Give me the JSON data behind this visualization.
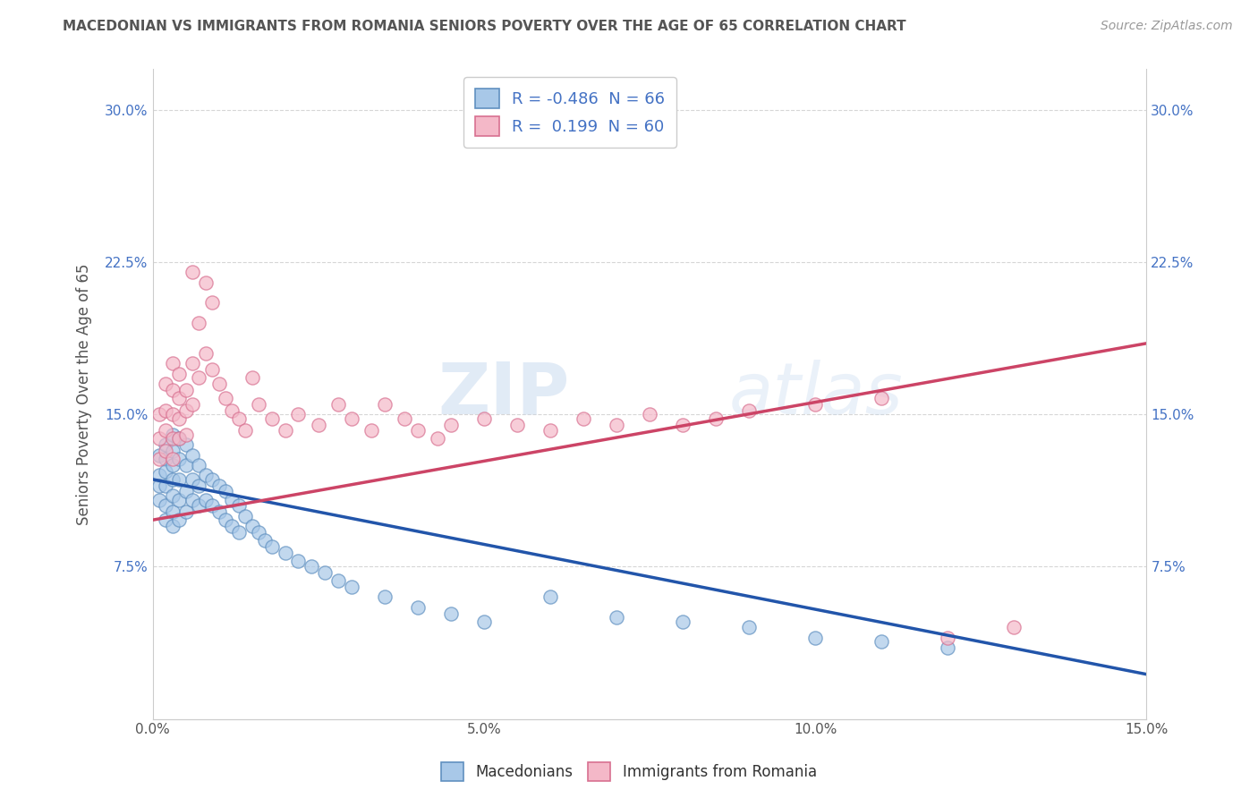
{
  "title": "MACEDONIAN VS IMMIGRANTS FROM ROMANIA SENIORS POVERTY OVER THE AGE OF 65 CORRELATION CHART",
  "source": "Source: ZipAtlas.com",
  "xlabel": "",
  "ylabel": "Seniors Poverty Over the Age of 65",
  "xmin": 0.0,
  "xmax": 0.15,
  "ymin": 0.0,
  "ymax": 0.32,
  "yticks": [
    0.075,
    0.15,
    0.225,
    0.3
  ],
  "ytick_labels": [
    "7.5%",
    "15.0%",
    "22.5%",
    "30.0%"
  ],
  "xticks": [
    0.0,
    0.05,
    0.1,
    0.15
  ],
  "xtick_labels": [
    "0.0%",
    "5.0%",
    "10.0%",
    "15.0%"
  ],
  "legend_labels": [
    "Macedonians",
    "Immigrants from Romania"
  ],
  "blue_color": "#a8c8e8",
  "pink_color": "#f4b8c8",
  "blue_edge": "#6090c0",
  "pink_edge": "#d87090",
  "blue_line_color": "#2255aa",
  "pink_line_color": "#cc4466",
  "R_blue": -0.486,
  "N_blue": 66,
  "R_pink": 0.199,
  "N_pink": 60,
  "watermark_zip": "ZIP",
  "watermark_atlas": "atlas",
  "background_color": "#ffffff",
  "grid_color": "#cccccc",
  "title_color": "#555555",
  "axis_label_color": "#555555",
  "legend_text_color": "#4472c4",
  "blue_line_y0": 0.118,
  "blue_line_y1": 0.022,
  "pink_line_y0": 0.098,
  "pink_line_y1": 0.185,
  "blue_scatter_x": [
    0.001,
    0.001,
    0.001,
    0.001,
    0.002,
    0.002,
    0.002,
    0.002,
    0.002,
    0.002,
    0.003,
    0.003,
    0.003,
    0.003,
    0.003,
    0.003,
    0.003,
    0.004,
    0.004,
    0.004,
    0.004,
    0.004,
    0.005,
    0.005,
    0.005,
    0.005,
    0.006,
    0.006,
    0.006,
    0.007,
    0.007,
    0.007,
    0.008,
    0.008,
    0.009,
    0.009,
    0.01,
    0.01,
    0.011,
    0.011,
    0.012,
    0.012,
    0.013,
    0.013,
    0.014,
    0.015,
    0.016,
    0.017,
    0.018,
    0.02,
    0.022,
    0.024,
    0.026,
    0.028,
    0.03,
    0.035,
    0.04,
    0.045,
    0.05,
    0.06,
    0.07,
    0.08,
    0.09,
    0.1,
    0.11,
    0.12
  ],
  "blue_scatter_y": [
    0.13,
    0.12,
    0.115,
    0.108,
    0.135,
    0.128,
    0.122,
    0.115,
    0.105,
    0.098,
    0.14,
    0.132,
    0.125,
    0.118,
    0.11,
    0.102,
    0.095,
    0.138,
    0.128,
    0.118,
    0.108,
    0.098,
    0.135,
    0.125,
    0.112,
    0.102,
    0.13,
    0.118,
    0.108,
    0.125,
    0.115,
    0.105,
    0.12,
    0.108,
    0.118,
    0.105,
    0.115,
    0.102,
    0.112,
    0.098,
    0.108,
    0.095,
    0.105,
    0.092,
    0.1,
    0.095,
    0.092,
    0.088,
    0.085,
    0.082,
    0.078,
    0.075,
    0.072,
    0.068,
    0.065,
    0.06,
    0.055,
    0.052,
    0.048,
    0.06,
    0.05,
    0.048,
    0.045,
    0.04,
    0.038,
    0.035
  ],
  "pink_scatter_x": [
    0.001,
    0.001,
    0.001,
    0.002,
    0.002,
    0.002,
    0.002,
    0.003,
    0.003,
    0.003,
    0.003,
    0.003,
    0.004,
    0.004,
    0.004,
    0.004,
    0.005,
    0.005,
    0.005,
    0.006,
    0.006,
    0.006,
    0.007,
    0.007,
    0.008,
    0.008,
    0.009,
    0.009,
    0.01,
    0.011,
    0.012,
    0.013,
    0.014,
    0.015,
    0.016,
    0.018,
    0.02,
    0.022,
    0.025,
    0.028,
    0.03,
    0.033,
    0.035,
    0.038,
    0.04,
    0.043,
    0.045,
    0.05,
    0.055,
    0.06,
    0.065,
    0.07,
    0.075,
    0.08,
    0.085,
    0.09,
    0.1,
    0.11,
    0.12,
    0.13
  ],
  "pink_scatter_y": [
    0.15,
    0.138,
    0.128,
    0.165,
    0.152,
    0.142,
    0.132,
    0.175,
    0.162,
    0.15,
    0.138,
    0.128,
    0.17,
    0.158,
    0.148,
    0.138,
    0.162,
    0.152,
    0.14,
    0.22,
    0.175,
    0.155,
    0.195,
    0.168,
    0.215,
    0.18,
    0.205,
    0.172,
    0.165,
    0.158,
    0.152,
    0.148,
    0.142,
    0.168,
    0.155,
    0.148,
    0.142,
    0.15,
    0.145,
    0.155,
    0.148,
    0.142,
    0.155,
    0.148,
    0.142,
    0.138,
    0.145,
    0.148,
    0.145,
    0.142,
    0.148,
    0.145,
    0.15,
    0.145,
    0.148,
    0.152,
    0.155,
    0.158,
    0.04,
    0.045
  ]
}
